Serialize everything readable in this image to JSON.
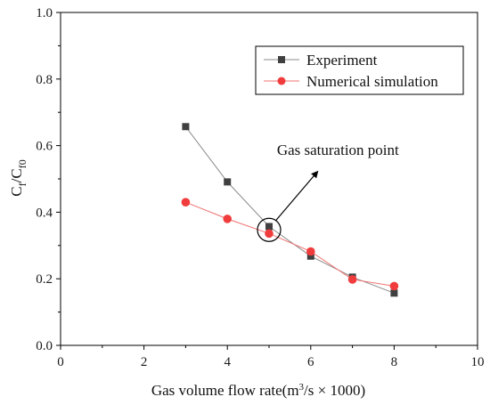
{
  "chart_data": {
    "type": "line",
    "xlabel": {
      "main": "Gas volume flow rate(m",
      "sup": "3",
      "rest": "/s × 1000)"
    },
    "ylabel": {
      "c1": "C",
      "s1": "f",
      "mid": "/C",
      "s2": "f0"
    },
    "xlim": [
      0,
      10
    ],
    "ylim": [
      0.0,
      1.0
    ],
    "xticks": [
      0,
      2,
      4,
      6,
      8,
      10
    ],
    "xtick_labels": [
      "0",
      "2",
      "4",
      "6",
      "8",
      "10"
    ],
    "yticks": [
      0.0,
      0.2,
      0.4,
      0.6,
      0.8,
      1.0
    ],
    "ytick_labels": [
      "0.0",
      "0.2",
      "0.4",
      "0.6",
      "0.8",
      "1.0"
    ],
    "grid": false,
    "legend_position": "top-right",
    "series": [
      {
        "name": "Experiment",
        "marker": "square",
        "color": "#404040",
        "line_color": "#8c8c8c",
        "x": [
          3,
          4,
          5,
          6,
          7,
          8
        ],
        "y": [
          0.657,
          0.491,
          0.357,
          0.268,
          0.205,
          0.157
        ]
      },
      {
        "name": "Numerical simulation",
        "marker": "circle",
        "color": "#f03c3c",
        "line_color": "#f07070",
        "x": [
          3,
          4,
          5,
          6,
          7,
          8
        ],
        "y": [
          0.43,
          0.38,
          0.336,
          0.282,
          0.198,
          0.178
        ]
      }
    ],
    "annotation": {
      "text": "Gas saturation point",
      "point": [
        5,
        0.347
      ],
      "text_at": [
        6.3,
        0.585
      ]
    }
  }
}
